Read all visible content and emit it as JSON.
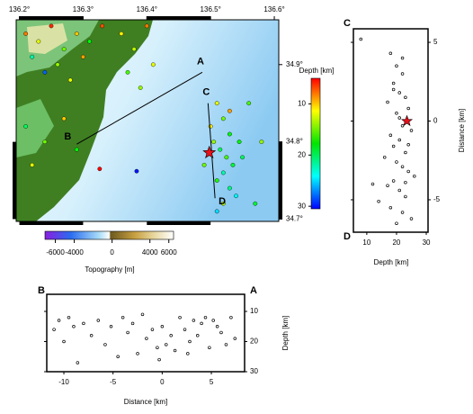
{
  "chart_data": [
    {
      "type": "map",
      "xlim": [
        136.195,
        136.607
      ],
      "ylim": [
        34.697,
        34.958
      ],
      "xticks": [
        {
          "value": 136.2,
          "label": "136.2°"
        },
        {
          "value": 136.3,
          "label": "136.3°"
        },
        {
          "value": 136.4,
          "label": "136.4°"
        },
        {
          "value": 136.5,
          "label": "136.5°"
        },
        {
          "value": 136.6,
          "label": "136.6°"
        }
      ],
      "yticks": [
        {
          "value": 34.7,
          "label": "34.7°"
        },
        {
          "value": 34.8,
          "label": "34.8°"
        },
        {
          "value": 34.9,
          "label": "34.9°"
        }
      ],
      "colormap": "rainbow",
      "profiles": [
        {
          "start": "A",
          "end": "B",
          "start_lon": 136.487,
          "start_lat": 34.89,
          "end_lon": 136.29,
          "end_lat": 34.797
        },
        {
          "start": "C",
          "end": "D",
          "start_lon": 136.496,
          "start_lat": 34.85,
          "end_lon": 136.507,
          "end_lat": 34.727
        }
      ],
      "mainshock": {
        "lon": 136.498,
        "lat": 34.786,
        "color": "#e8101a"
      },
      "events": {
        "lon": [
          136.51,
          136.52,
          136.53,
          136.505,
          136.515,
          136.525,
          136.535,
          136.52,
          136.51,
          136.53,
          136.52,
          136.54,
          136.5,
          136.545,
          136.49,
          136.53,
          136.55,
          136.51,
          136.21,
          136.23,
          136.25,
          136.27,
          136.29,
          136.31,
          136.22,
          136.26,
          136.3,
          136.24,
          136.28,
          136.33,
          136.36,
          136.38,
          136.4,
          136.37,
          136.41,
          136.39,
          136.21,
          136.24,
          136.27,
          136.22,
          136.29,
          136.384,
          136.326,
          136.58,
          136.57,
          136.56
        ],
        "lat": [
          34.85,
          34.83,
          34.81,
          34.8,
          34.79,
          34.78,
          34.77,
          34.76,
          34.75,
          34.74,
          34.72,
          34.73,
          34.82,
          34.8,
          34.77,
          34.84,
          34.78,
          34.71,
          34.94,
          34.93,
          34.95,
          34.92,
          34.94,
          34.93,
          34.91,
          34.9,
          34.91,
          34.89,
          34.88,
          34.95,
          34.94,
          34.92,
          34.95,
          34.89,
          34.9,
          34.87,
          34.82,
          34.8,
          34.83,
          34.77,
          34.79,
          34.762,
          34.765,
          34.8,
          34.72,
          34.85
        ],
        "depth": [
          12,
          15,
          18,
          14,
          20,
          16,
          19,
          22,
          17,
          21,
          13,
          24,
          11,
          18,
          15,
          9,
          20,
          25,
          8,
          12,
          6,
          15,
          10,
          18,
          22,
          14,
          9,
          28,
          12,
          7,
          11,
          13,
          8,
          16,
          12,
          14,
          20,
          15,
          10,
          12,
          18,
          30,
          5,
          14,
          19,
          16
        ]
      },
      "depth_colorbar": {
        "label": "Depth [km]",
        "lim": [
          5,
          30.5
        ],
        "ticks": [
          10,
          20,
          30
        ]
      },
      "topography_colorbar": {
        "label": "Topography [m]",
        "lim": [
          -7100,
          6500
        ],
        "ticks": [
          -6000,
          -4000,
          0,
          4000,
          6000
        ]
      }
    },
    {
      "type": "scatter",
      "start_label": "C",
      "end_label": "D",
      "x_label": "Depth [km]",
      "y_label": "Distance [km]",
      "xlim": [
        5.5,
        30.6
      ],
      "ylim": [
        -7.06,
        5.86
      ],
      "xticks": [
        10,
        20,
        30
      ],
      "yticks": [
        -5,
        0,
        5
      ],
      "x": [
        8,
        18,
        20,
        22,
        19,
        21,
        23,
        17,
        24,
        20,
        22,
        25,
        18,
        21,
        19,
        23,
        16,
        20,
        22,
        24,
        26,
        19,
        17,
        21,
        23,
        14,
        18,
        22,
        25,
        20,
        12,
        19,
        24,
        21,
        22,
        23
      ],
      "y": [
        5.2,
        4.3,
        3.5,
        3.0,
        2.4,
        1.8,
        1.5,
        1.2,
        0.8,
        0.5,
        -0.3,
        -0.6,
        -0.9,
        -1.2,
        -1.6,
        -2.0,
        -2.3,
        -2.6,
        -2.9,
        -3.2,
        -3.5,
        -3.8,
        -4.1,
        -4.4,
        -4.8,
        -5.1,
        -5.5,
        -5.8,
        -6.2,
        -6.5,
        -4.0,
        2.0,
        -1.5,
        0.2,
        4.0,
        -3.9
      ],
      "mainshock": {
        "x": 23.5,
        "y": 0,
        "color": "#e8101a"
      }
    },
    {
      "type": "scatter",
      "start_label": "B",
      "end_label": "A",
      "x_label": "Distance [km]",
      "y_label": "Depth [km]",
      "xlim": [
        -11.74,
        8.38
      ],
      "ylim": [
        30,
        4.33
      ],
      "xticks": [
        -10,
        -5,
        0,
        5
      ],
      "yticks": [
        10,
        20,
        30
      ],
      "x": [
        -11,
        -10.5,
        -10,
        -9.5,
        -9,
        -8.6,
        -8,
        -7.2,
        -6.5,
        -5.8,
        -5.2,
        -4.5,
        -4,
        -3.5,
        -3,
        -2.5,
        -2,
        -1.6,
        -1,
        -0.5,
        0,
        0.4,
        0.9,
        1.3,
        1.8,
        2.3,
        2.8,
        3.2,
        3.6,
        4,
        4.4,
        4.8,
        5.2,
        5.6,
        6,
        6.5,
        7,
        7.4,
        -0.3,
        2.6
      ],
      "y": [
        16,
        13,
        20,
        12,
        15,
        27,
        14,
        18,
        13,
        21,
        15,
        25,
        12,
        17,
        14,
        24,
        11,
        19,
        16,
        22,
        15,
        21,
        18,
        23,
        12,
        16,
        20,
        13,
        18,
        14,
        12,
        22,
        13,
        15,
        17,
        21,
        12,
        19,
        26,
        24
      ]
    }
  ]
}
